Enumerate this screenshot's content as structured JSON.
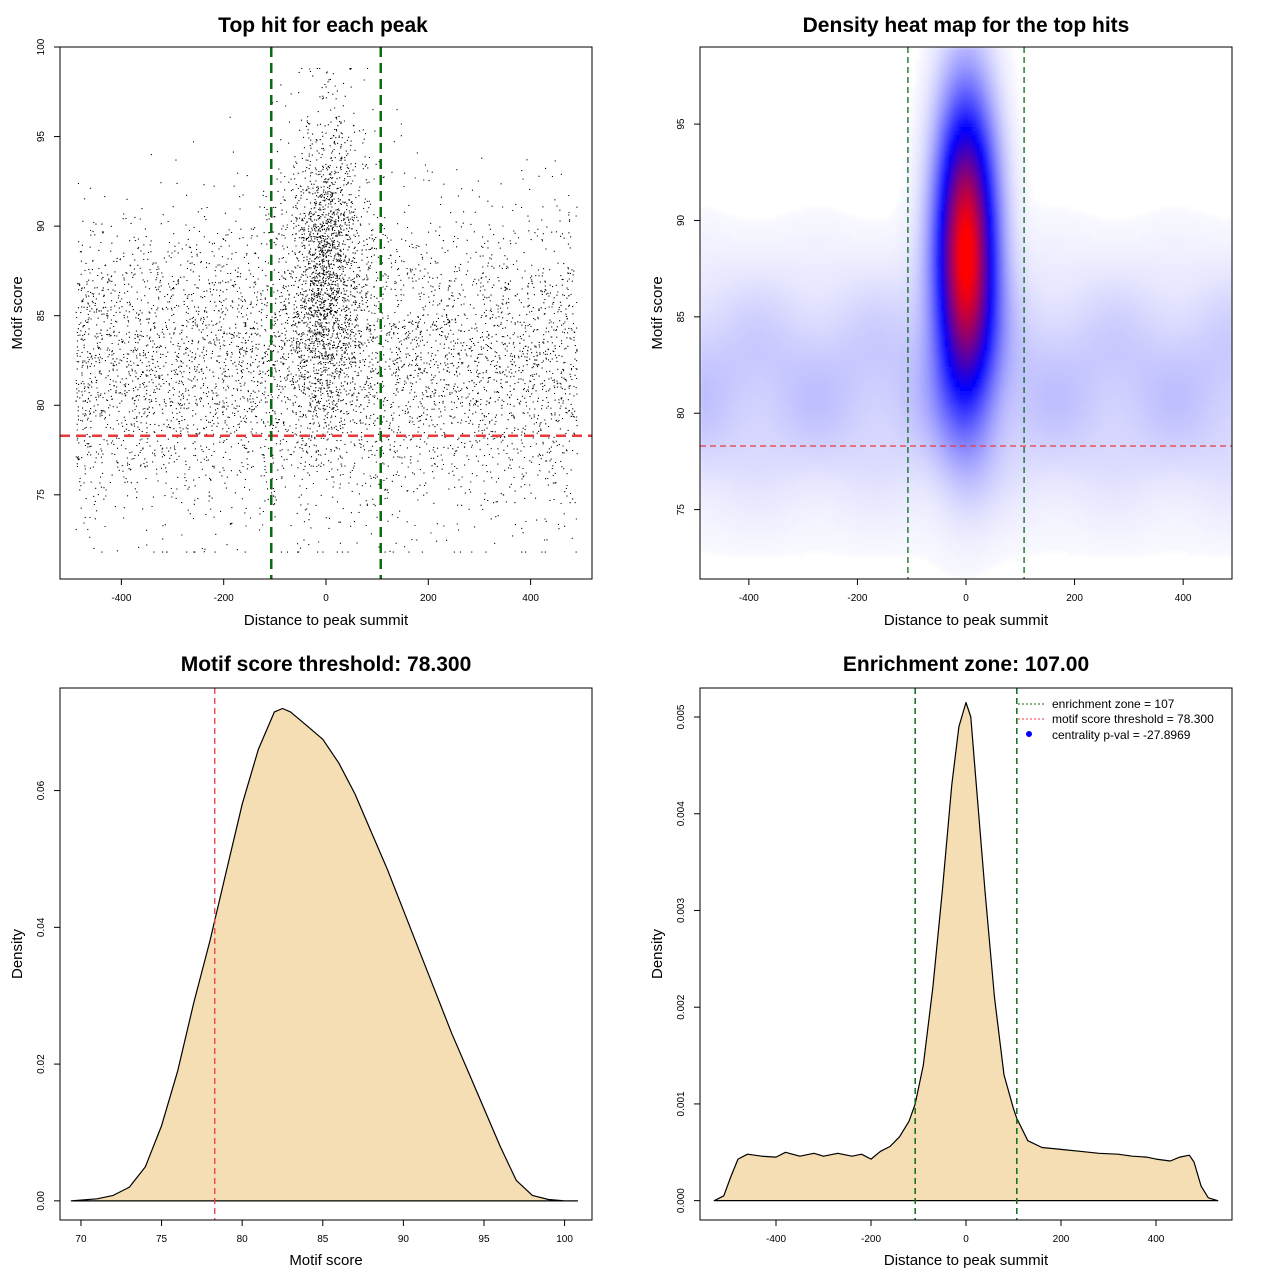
{
  "colors": {
    "threshold_line": "#e8393f",
    "zone_line": "#0a6b16",
    "density_fill": "#f5deb3",
    "heat_low": "#ffffff",
    "heat_mid": "#0000ff",
    "heat_high": "#ff0000"
  },
  "chart_data": [
    {
      "id": "scatter",
      "type": "scatter",
      "title": "Top hit for each peak",
      "xlabel": "Distance to peak summit",
      "ylabel": "Motif score",
      "xlim": [
        -520,
        520
      ],
      "ylim": [
        70.3,
        100
      ],
      "xticks": [
        -400,
        -200,
        0,
        200,
        400
      ],
      "xtick_labels": [
        "-400",
        "-200",
        "0",
        "200",
        "400"
      ],
      "yticks": [
        75,
        80,
        85,
        90,
        95,
        100
      ],
      "ytick_labels": [
        "75",
        "80",
        "85",
        "90",
        "95",
        "100"
      ],
      "threshold": 78.3,
      "zone": [
        -107,
        107
      ],
      "points": {
        "note": "distribution summary of the ~10000 plotted hits",
        "background": {
          "count": 5200,
          "x_range": [
            -490,
            490
          ],
          "y_mean": 82.2,
          "y_sd": 4.2
        },
        "central": {
          "count": 4800,
          "x_mean": 0,
          "x_sd": 32,
          "y_mean": 87.5,
          "y_sd": 4.3
        },
        "seed": 42
      }
    },
    {
      "id": "heatmap",
      "type": "heatmap",
      "title": "Density heat map for the top hits",
      "xlabel": "Distance to peak summit",
      "ylabel": "Motif score",
      "xlim": [
        -490,
        490
      ],
      "ylim": [
        71.4,
        99
      ],
      "xticks": [
        -400,
        -200,
        0,
        200,
        400
      ],
      "xtick_labels": [
        "-400",
        "-200",
        "0",
        "200",
        "400"
      ],
      "yticks": [
        75,
        80,
        85,
        90,
        95
      ],
      "ytick_labels": [
        "75",
        "80",
        "85",
        "90",
        "95"
      ],
      "threshold": 78.3,
      "zone": [
        -107,
        107
      ],
      "peak": {
        "x": 0,
        "y": 88.5
      }
    },
    {
      "id": "score_density",
      "type": "area",
      "title": "Motif score threshold: 78.300",
      "xlabel": "Motif score",
      "ylabel": "Density",
      "xlim": [
        68.7,
        101.7
      ],
      "ylim": [
        -0.0028,
        0.075
      ],
      "xticks": [
        70,
        75,
        80,
        85,
        90,
        95,
        100
      ],
      "xtick_labels": [
        "70",
        "75",
        "80",
        "85",
        "90",
        "95",
        "100"
      ],
      "yticks": [
        0,
        0.02,
        0.04,
        0.06
      ],
      "ytick_labels": [
        "0.00",
        "0.02",
        "0.04",
        "0.06"
      ],
      "threshold": 78.3,
      "x": [
        69.4,
        71,
        72,
        73,
        74,
        75,
        76,
        77,
        78,
        79,
        80,
        81,
        82,
        82.5,
        83,
        84,
        85,
        86,
        87,
        88,
        89,
        90,
        91,
        92,
        93,
        94,
        95,
        96,
        97,
        98,
        99,
        100,
        100.8
      ],
      "y": [
        0,
        0.0003,
        0.0008,
        0.002,
        0.005,
        0.011,
        0.019,
        0.029,
        0.038,
        0.048,
        0.058,
        0.066,
        0.0715,
        0.072,
        0.0715,
        0.0695,
        0.0675,
        0.064,
        0.0595,
        0.054,
        0.0485,
        0.0425,
        0.0365,
        0.0305,
        0.0245,
        0.019,
        0.0135,
        0.008,
        0.003,
        0.0008,
        0.0002,
        0,
        0
      ]
    },
    {
      "id": "distance_density",
      "type": "area",
      "title": "Enrichment zone: 107.00",
      "xlabel": "Distance to peak summit",
      "ylabel": "Density",
      "xlim": [
        -560,
        560
      ],
      "ylim": [
        -0.0002,
        0.0053
      ],
      "xticks": [
        -400,
        -200,
        0,
        200,
        400
      ],
      "xtick_labels": [
        "-400",
        "-200",
        "0",
        "200",
        "400"
      ],
      "yticks": [
        0,
        0.001,
        0.002,
        0.003,
        0.004,
        0.005
      ],
      "ytick_labels": [
        "0.000",
        "0.001",
        "0.002",
        "0.003",
        "0.004",
        "0.005"
      ],
      "zone": [
        -107,
        107
      ],
      "x": [
        -530,
        -510,
        -495,
        -480,
        -460,
        -430,
        -400,
        -380,
        -350,
        -320,
        -300,
        -270,
        -240,
        -220,
        -200,
        -180,
        -160,
        -140,
        -120,
        -107,
        -90,
        -70,
        -50,
        -30,
        -15,
        0,
        10,
        20,
        40,
        60,
        80,
        100,
        107,
        130,
        160,
        200,
        240,
        280,
        320,
        350,
        380,
        400,
        430,
        450,
        470,
        480,
        495,
        510,
        530
      ],
      "y": [
        0,
        5e-05,
        0.00025,
        0.00043,
        0.00048,
        0.00046,
        0.00045,
        0.0005,
        0.00046,
        0.00049,
        0.00046,
        0.00049,
        0.00046,
        0.00048,
        0.00043,
        0.00051,
        0.00056,
        0.00066,
        0.00082,
        0.001,
        0.0014,
        0.0022,
        0.0032,
        0.0043,
        0.0049,
        0.00515,
        0.005,
        0.0044,
        0.0032,
        0.0021,
        0.0013,
        0.00095,
        0.00085,
        0.00062,
        0.00055,
        0.00053,
        0.00051,
        0.00049,
        0.00048,
        0.00046,
        0.00045,
        0.00043,
        0.00041,
        0.00045,
        0.00047,
        0.0004,
        0.00015,
        3e-05,
        0
      ],
      "legend": {
        "position": "top-right",
        "entries": [
          {
            "label": "enrichment zone = 107",
            "symbol": "dotted-green-line"
          },
          {
            "label": "motif score threshold = 78.300",
            "symbol": "dotted-red-line"
          },
          {
            "label": "centrality p-val = -27.8969",
            "symbol": "blue-dot"
          }
        ]
      }
    }
  ]
}
